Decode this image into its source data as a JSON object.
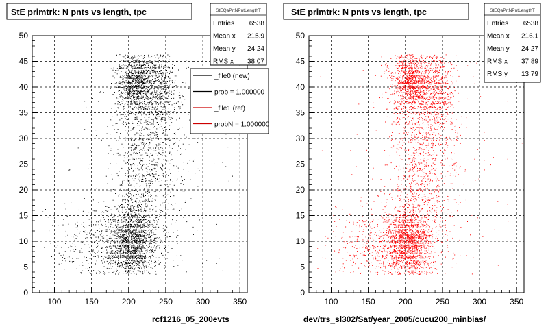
{
  "charts": [
    {
      "title": "StE primtrk: N pnts vs length, tpc",
      "xlabel": "rcf1216_05_200evts",
      "color": "#000000",
      "stats": {
        "name": "StEQaPrtNPntLengthT",
        "rows": [
          {
            "label": "Entries",
            "value": "6538"
          },
          {
            "label": "Mean x",
            "value": "215.9"
          },
          {
            "label": "Mean y",
            "value": "24.24"
          },
          {
            "label": "RMS x",
            "value": "38.07"
          }
        ]
      },
      "legend": [
        {
          "label": "_file0 (new)",
          "color": "#000000"
        },
        {
          "label": "prob = 1.000000",
          "color": "#000000"
        },
        {
          "label": "_file1 (ref)",
          "color": "#cc0000"
        },
        {
          "label": "probN = 1.000000",
          "color": "#cc0000"
        }
      ]
    },
    {
      "title": "StE primtrk: N pnts vs length, tpc",
      "xlabel": "dev/trs_sl302/Sat/year_2005/cucu200_minbias/",
      "color": "#ff0000",
      "stats": {
        "name": "StEQaPrtNPntLengthT",
        "rows": [
          {
            "label": "Entries",
            "value": "6538"
          },
          {
            "label": "Mean x",
            "value": "216.1"
          },
          {
            "label": "Mean y",
            "value": "24.27"
          },
          {
            "label": "RMS x",
            "value": "37.89"
          },
          {
            "label": "RMS y",
            "value": "13.79"
          }
        ]
      },
      "legend": []
    }
  ],
  "chart_data": [
    {
      "type": "scatter",
      "title": "StE primtrk: N pnts vs length, tpc",
      "xlabel": "rcf1216_05_200evts",
      "ylabel": "",
      "xlim": [
        70,
        360
      ],
      "ylim": [
        0,
        50
      ],
      "xticks": [
        100,
        150,
        200,
        250,
        300,
        350
      ],
      "yticks": [
        0,
        5,
        10,
        15,
        20,
        25,
        30,
        35,
        40,
        45,
        50
      ],
      "grid": true,
      "color": "#000000",
      "legend_position": "top-right",
      "entries": 6538,
      "mean_x": 215.9,
      "mean_y": 24.24,
      "rms_x": 38.07,
      "seed": 11,
      "density_model": [
        {
          "weight": 0.3,
          "cx": 205,
          "sx": 15,
          "cy": 10,
          "sy": 3.5
        },
        {
          "weight": 0.1,
          "cx": 165,
          "sx": 35,
          "cy": 9,
          "sy": 4
        },
        {
          "weight": 0.2,
          "cx": 208,
          "sx": 12,
          "cy": 41,
          "sy": 3
        },
        {
          "weight": 0.12,
          "cx": 240,
          "sx": 12,
          "cy": 40,
          "sy": 4
        },
        {
          "weight": 0.18,
          "cx": 222,
          "sx": 20,
          "cy": 25,
          "sy": 10
        },
        {
          "weight": 0.1,
          "cx": 230,
          "sx": 45,
          "cy": 24,
          "sy": 16
        }
      ]
    },
    {
      "type": "scatter",
      "title": "StE primtrk: N pnts vs length, tpc",
      "xlabel": "dev/trs_sl302/Sat/year_2005/cucu200_minbias/",
      "ylabel": "",
      "xlim": [
        70,
        360
      ],
      "ylim": [
        0,
        50
      ],
      "xticks": [
        100,
        150,
        200,
        250,
        300,
        350
      ],
      "yticks": [
        0,
        5,
        10,
        15,
        20,
        25,
        30,
        35,
        40,
        45,
        50
      ],
      "grid": true,
      "color": "#ff0000",
      "entries": 6538,
      "mean_x": 216.1,
      "mean_y": 24.27,
      "rms_x": 37.89,
      "rms_y": 13.79,
      "seed": 29,
      "density_model": [
        {
          "weight": 0.3,
          "cx": 205,
          "sx": 15,
          "cy": 10,
          "sy": 3.5
        },
        {
          "weight": 0.1,
          "cx": 165,
          "sx": 35,
          "cy": 9,
          "sy": 4
        },
        {
          "weight": 0.2,
          "cx": 208,
          "sx": 12,
          "cy": 41,
          "sy": 3
        },
        {
          "weight": 0.12,
          "cx": 240,
          "sx": 12,
          "cy": 40,
          "sy": 4
        },
        {
          "weight": 0.18,
          "cx": 222,
          "sx": 20,
          "cy": 25,
          "sy": 10
        },
        {
          "weight": 0.1,
          "cx": 230,
          "sx": 45,
          "cy": 24,
          "sy": 16
        }
      ]
    }
  ]
}
